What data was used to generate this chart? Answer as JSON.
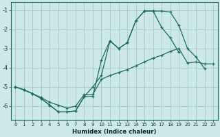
{
  "xlabel": "Humidex (Indice chaleur)",
  "bg_color": "#cce8e8",
  "grid_color": "#aacccc",
  "line_color": "#1e6b5e",
  "xlim": [
    -0.5,
    23.5
  ],
  "ylim": [
    -6.7,
    -0.6
  ],
  "yticks": [
    -6,
    -5,
    -4,
    -3,
    -2,
    -1
  ],
  "xticks": [
    0,
    1,
    2,
    3,
    4,
    5,
    6,
    7,
    8,
    9,
    10,
    11,
    12,
    13,
    14,
    15,
    16,
    17,
    18,
    19,
    20,
    21,
    22,
    23
  ],
  "line1_y": [
    -5.0,
    -5.15,
    -5.35,
    -5.6,
    -5.95,
    -6.3,
    -6.3,
    -6.25,
    -5.5,
    -5.0,
    -4.4,
    -2.6,
    -3.0,
    -2.7,
    -1.55,
    -1.05,
    -1.05,
    -1.05,
    -1.1,
    -1.8,
    -3.0,
    -3.45,
    -4.05,
    null
  ],
  "line2_y": [
    -5.0,
    -5.15,
    -5.35,
    -5.6,
    -5.95,
    -6.3,
    -6.3,
    -6.25,
    -5.5,
    -5.5,
    -3.6,
    -2.6,
    -3.0,
    -2.7,
    -1.55,
    -1.05,
    -1.05,
    -1.9,
    -2.45,
    -3.2,
    null,
    null,
    null,
    null
  ],
  "line3_y": [
    -5.0,
    -5.15,
    -5.35,
    -5.55,
    -5.8,
    -5.95,
    -6.1,
    -6.0,
    -5.4,
    -5.4,
    -4.6,
    -4.4,
    -4.25,
    -4.1,
    -3.9,
    -3.7,
    -3.5,
    -3.35,
    -3.15,
    -3.0,
    -3.75,
    -3.7,
    -3.8,
    -3.8
  ]
}
